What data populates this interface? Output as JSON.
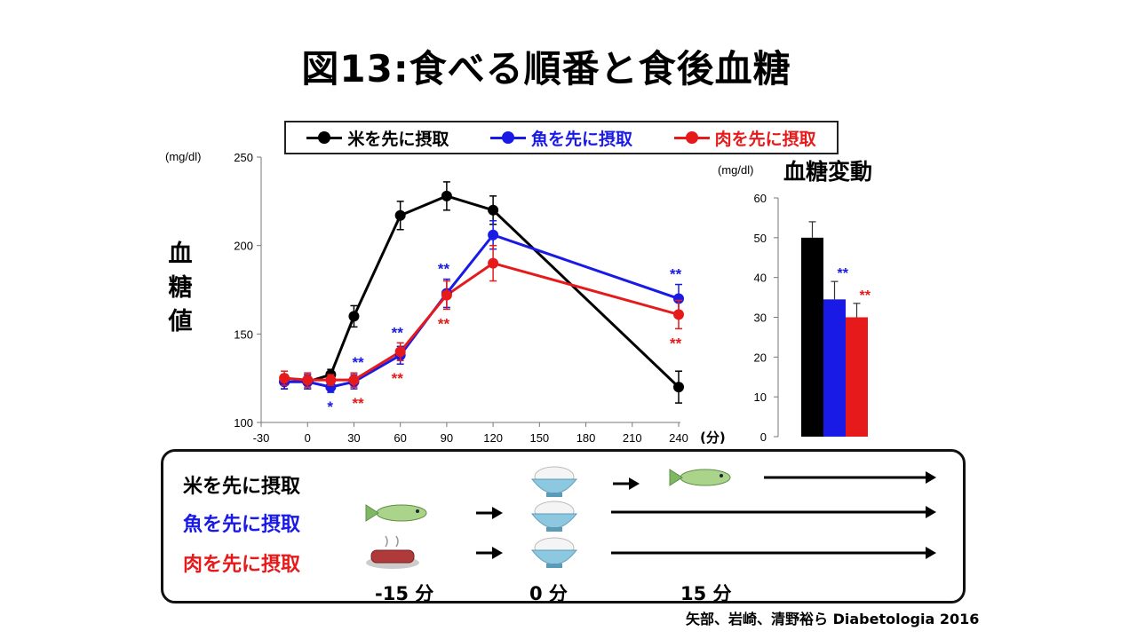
{
  "title": "図13:食べる順番と食後血糖",
  "legend": [
    {
      "label": "米を先に摂取",
      "color": "#000000"
    },
    {
      "label": "魚を先に摂取",
      "color": "#1a1ae6"
    },
    {
      "label": "肉を先に摂取",
      "color": "#e61a1a"
    }
  ],
  "colors": {
    "rice": "#000000",
    "fish": "#1a1ae6",
    "meat": "#e61a1a"
  },
  "chart_data": [
    {
      "type": "line",
      "ylabel": "血糖値",
      "yunit": "(mg/dl)",
      "xunit": "(分)",
      "xlim": [
        -30,
        240
      ],
      "ylim": [
        100,
        250
      ],
      "xticks": [
        "-30",
        "0",
        "30",
        "60",
        "90",
        "120",
        "150",
        "180",
        "210",
        "240"
      ],
      "yticks": [
        "100",
        "150",
        "200",
        "250"
      ],
      "series": [
        {
          "name": "米を先に摂取",
          "color": "#000000",
          "x": [
            -15,
            0,
            15,
            30,
            60,
            90,
            120,
            240
          ],
          "y": [
            123,
            123,
            127,
            160,
            217,
            228,
            220,
            120
          ],
          "err": [
            4,
            4,
            3,
            6,
            8,
            8,
            8,
            9
          ]
        },
        {
          "name": "魚を先に摂取",
          "color": "#1a1ae6",
          "x": [
            -15,
            0,
            15,
            30,
            60,
            90,
            120,
            240
          ],
          "y": [
            123,
            123,
            120,
            123,
            138,
            173,
            206,
            170
          ],
          "err": [
            4,
            4,
            3,
            4,
            5,
            8,
            8,
            8
          ]
        },
        {
          "name": "肉を先に摂取",
          "color": "#e61a1a",
          "x": [
            -15,
            0,
            15,
            30,
            60,
            90,
            120,
            240
          ],
          "y": [
            125,
            124,
            124,
            124,
            140,
            172,
            190,
            161
          ],
          "err": [
            4,
            4,
            3,
            4,
            5,
            8,
            10,
            8
          ]
        }
      ],
      "annotations": [
        {
          "x": 15,
          "text": "*",
          "color": "#1a1ae6",
          "pos": "below"
        },
        {
          "x": 30,
          "text": "**",
          "color": "#1a1ae6",
          "pos": "above"
        },
        {
          "x": 30,
          "text": "**",
          "color": "#e61a1a",
          "pos": "below"
        },
        {
          "x": 60,
          "text": "**",
          "color": "#1a1ae6",
          "pos": "above"
        },
        {
          "x": 60,
          "text": "**",
          "color": "#e61a1a",
          "pos": "below"
        },
        {
          "x": 90,
          "text": "**",
          "color": "#1a1ae6",
          "pos": "above"
        },
        {
          "x": 90,
          "text": "**",
          "color": "#e61a1a",
          "pos": "below"
        },
        {
          "x": 240,
          "text": "**",
          "color": "#1a1ae6",
          "pos": "above"
        },
        {
          "x": 240,
          "text": "**",
          "color": "#e61a1a",
          "pos": "below"
        }
      ]
    },
    {
      "type": "bar",
      "title": "血糖変動",
      "yunit": "(mg/dl)",
      "ylim": [
        0,
        60
      ],
      "yticks": [
        "0",
        "10",
        "20",
        "30",
        "40",
        "50",
        "60"
      ],
      "categories": [
        "米を先に摂取",
        "魚を先に摂取",
        "肉を先に摂取"
      ],
      "values": [
        50,
        34.5,
        30
      ],
      "err": [
        4,
        4.5,
        3.5
      ],
      "colors": [
        "#000000",
        "#1a1ae6",
        "#e61a1a"
      ],
      "annotations": [
        "",
        "**",
        "**"
      ]
    }
  ],
  "protocol": {
    "rows": [
      {
        "label": "米を先に摂取",
        "color": "#000000"
      },
      {
        "label": "魚を先に摂取",
        "color": "#1a1ae6"
      },
      {
        "label": "肉を先に摂取",
        "color": "#e61a1a"
      }
    ],
    "times": [
      "-15 分",
      "0 分",
      "15 分"
    ]
  },
  "citation": "矢部、岩崎、清野裕ら Diabetologia 2016"
}
